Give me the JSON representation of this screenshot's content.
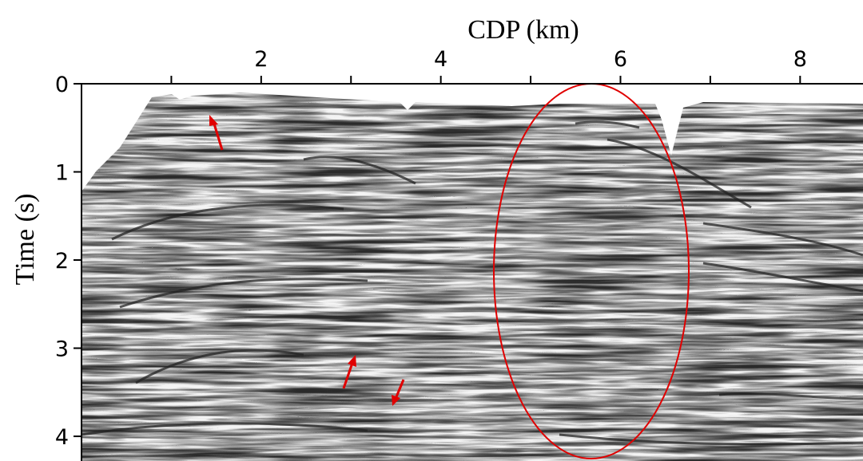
{
  "chart_data": {
    "type": "seismic-section",
    "xlabel": "CDP (km)",
    "ylabel": "Time (s)",
    "xlim": [
      0,
      8.7
    ],
    "xticks": [
      2,
      4,
      6,
      8
    ],
    "xminorticks": [
      1,
      3,
      5,
      7
    ],
    "ylim": [
      0,
      4.28
    ],
    "yticks": [
      0,
      1,
      2,
      3,
      4
    ],
    "yinverted": true,
    "xaxis_position": "top"
  }
}
